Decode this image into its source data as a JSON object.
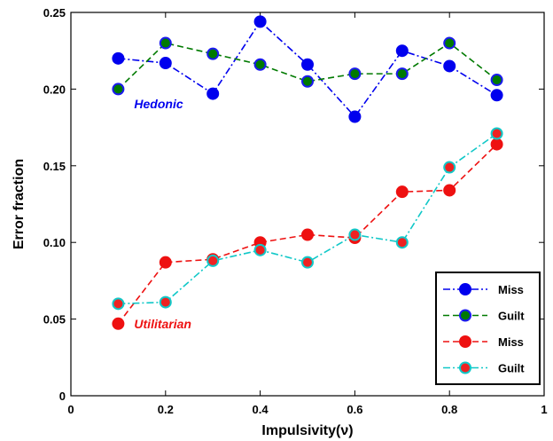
{
  "chart_data": {
    "type": "line",
    "title": "",
    "xlabel": "Impulsivity(ν)",
    "ylabel": "Error fraction",
    "xlim": [
      0,
      1
    ],
    "ylim": [
      0,
      0.25
    ],
    "x_ticks": [
      "0",
      "0.2",
      "0.4",
      "0.6",
      "0.8",
      "1"
    ],
    "y_ticks": [
      "0",
      "0.05",
      "0.10",
      "0.15",
      "0.20",
      "0.25"
    ],
    "x": [
      0.1,
      0.2,
      0.3,
      0.4,
      0.5,
      0.6,
      0.7,
      0.8,
      0.9
    ],
    "series": [
      {
        "name": "Miss",
        "group": "Hedonic",
        "color": "#0000ee",
        "edge": "#0000ee",
        "dash": "dashdot",
        "values": [
          0.22,
          0.217,
          0.197,
          0.244,
          0.216,
          0.182,
          0.225,
          0.215,
          0.196
        ]
      },
      {
        "name": "Guilt",
        "group": "Hedonic",
        "color": "#007a00",
        "edge": "#1a1aee",
        "dash": "dashed",
        "values": [
          0.2,
          0.23,
          0.223,
          0.216,
          0.205,
          0.21,
          0.21,
          0.23,
          0.206
        ]
      },
      {
        "name": "Miss",
        "group": "Utilitarian",
        "color": "#ee1111",
        "edge": "#ee1111",
        "dash": "dashed",
        "values": [
          0.047,
          0.087,
          0.089,
          0.1,
          0.105,
          0.103,
          0.133,
          0.134,
          0.164
        ]
      },
      {
        "name": "Guilt",
        "group": "Utilitarian",
        "color": "#11c8c8",
        "edge": "#11c8c8",
        "fill": "#ee2222",
        "dash": "dashdot",
        "values": [
          0.06,
          0.061,
          0.088,
          0.095,
          0.087,
          0.105,
          0.1,
          0.149,
          0.171
        ]
      }
    ],
    "annotations": [
      {
        "text": "Hedonic",
        "x": 0.13,
        "y": 0.1905,
        "color": "#0000ee"
      },
      {
        "text": "Utilitarian",
        "x": 0.13,
        "y": 0.047,
        "color": "#ee1111"
      }
    ],
    "legend": {
      "position": "bottom-right",
      "entries": [
        "Miss",
        "Guilt",
        "Miss",
        "Guilt"
      ]
    },
    "grid": false
  }
}
